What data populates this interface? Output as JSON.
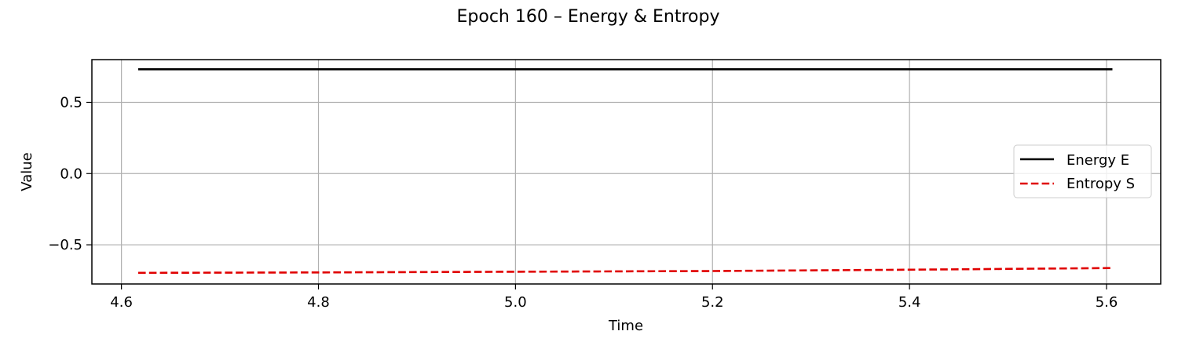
{
  "chart_data": {
    "type": "line",
    "title": "Epoch 160 – Energy & Entropy",
    "xlabel": "Time",
    "ylabel": "Value",
    "xlim": [
      4.57,
      5.655
    ],
    "ylim": [
      -0.775,
      0.8
    ],
    "xticks": [
      4.6,
      4.8,
      5.0,
      5.2,
      5.4,
      5.6
    ],
    "xtick_labels": [
      "4.6",
      "4.8",
      "5.0",
      "5.2",
      "5.4",
      "5.6"
    ],
    "yticks": [
      -0.5,
      0.0,
      0.5
    ],
    "ytick_labels": [
      "−0.5",
      "0.0",
      "0.5"
    ],
    "grid": true,
    "legend_position": "center-right",
    "series": [
      {
        "name": "Energy E",
        "color": "#000000",
        "style": "solid",
        "x": [
          4.617,
          4.8,
          5.0,
          5.2,
          5.4,
          5.606
        ],
        "y": [
          0.732,
          0.732,
          0.732,
          0.732,
          0.732,
          0.732
        ]
      },
      {
        "name": "Entropy S",
        "color": "#e00000",
        "style": "dashed",
        "x": [
          4.617,
          4.8,
          5.0,
          5.2,
          5.4,
          5.606
        ],
        "y": [
          -0.697,
          -0.694,
          -0.689,
          -0.684,
          -0.675,
          -0.663
        ]
      }
    ]
  }
}
